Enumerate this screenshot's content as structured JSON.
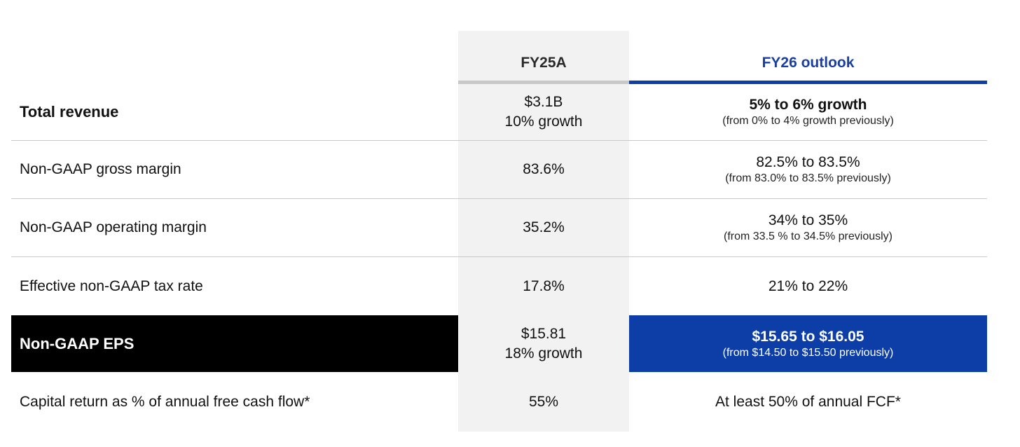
{
  "table": {
    "columns": {
      "actual": "FY25A",
      "outlook": "FY26 outlook"
    },
    "rows": [
      {
        "label": "Total revenue",
        "actual_line1": "$3.1B",
        "actual_line2": "10% growth",
        "outlook_main": "5% to 6% growth",
        "outlook_note": "(from 0% to 4% growth previously)"
      },
      {
        "label": "Non-GAAP gross margin",
        "actual": "83.6%",
        "outlook_main": "82.5% to 83.5%",
        "outlook_note": "(from 83.0% to 83.5% previously)"
      },
      {
        "label": "Non-GAAP operating margin",
        "actual": "35.2%",
        "outlook_main": "34% to 35%",
        "outlook_note": "(from 33.5 % to 34.5% previously)"
      },
      {
        "label": "Effective non-GAAP tax rate",
        "actual": "17.8%",
        "outlook_main": "21% to 22%"
      },
      {
        "label": "Non-GAAP EPS",
        "actual_line1": "$15.81",
        "actual_line2": "18% growth",
        "outlook_main": "$15.65 to $16.05",
        "outlook_note": "(from $14.50 to $15.50 previously)"
      },
      {
        "label": "Capital return as % of annual free cash flow*",
        "actual": "55%",
        "outlook_main": "At least 50% of annual FCF*"
      }
    ]
  },
  "colors": {
    "accent_blue": "#0d3ea7",
    "header_blue_text": "#1a3fa3",
    "actual_column_bg": "#f2f2f2",
    "eps_label_bg": "#000000"
  }
}
